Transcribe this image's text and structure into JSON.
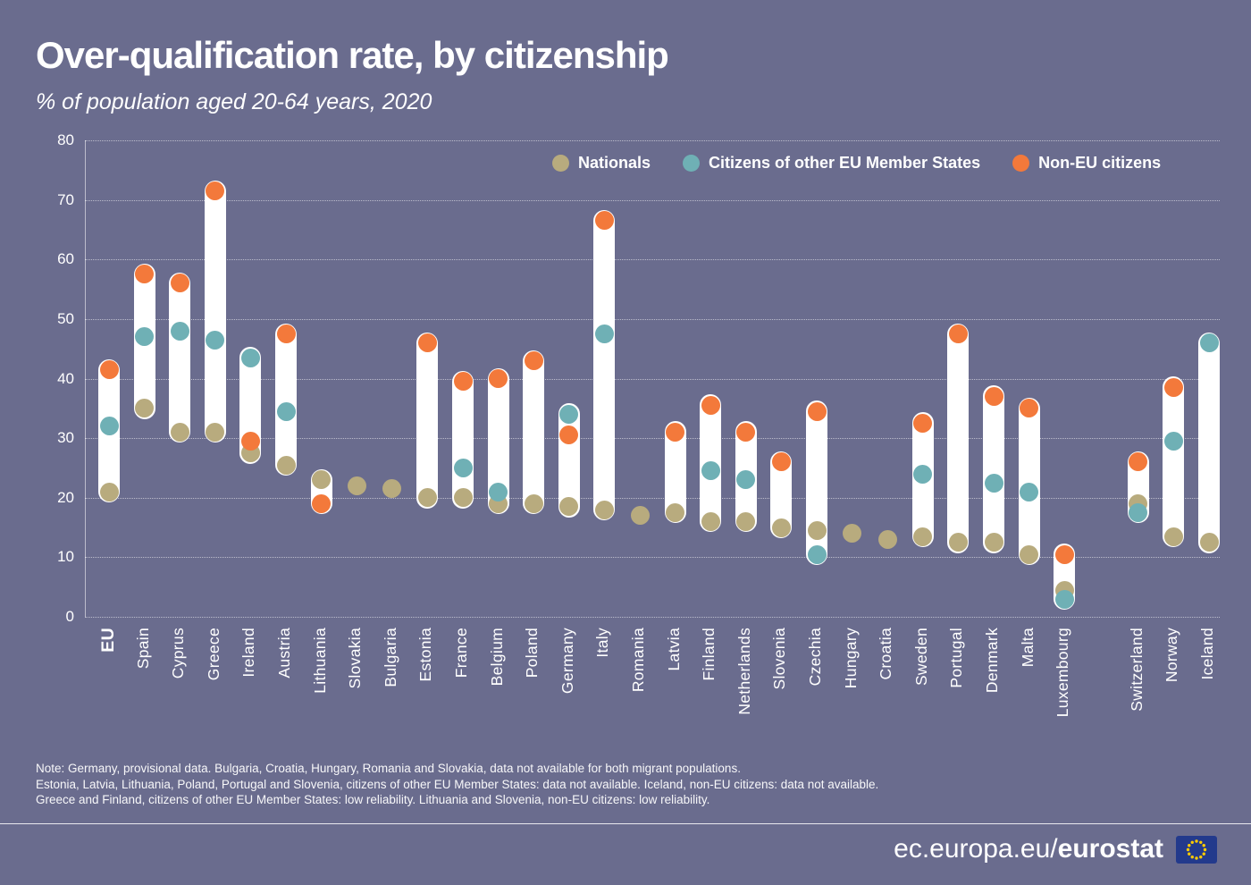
{
  "title": "Over-qualification rate, by citizenship",
  "subtitle": "% of population aged 20-64 years, 2020",
  "notes": [
    "Note: Germany, provisional data. Bulgaria, Croatia, Hungary, Romania and Slovakia, data not available for both migrant populations.",
    "Estonia, Latvia, Lithuania, Poland, Portugal and Slovenia, citizens of other EU Member States: data not available. Iceland, non-EU citizens: data not available.",
    "Greece and Finland, citizens of other EU Member States: low reliability. Lithuania and Slovenia, non-EU citizens: low reliability."
  ],
  "footer": {
    "url_prefix": "ec.europa.eu/",
    "url_bold": "eurostat"
  },
  "colors": {
    "background": "#6a6c8e",
    "bar": "#ffffff",
    "nationals": "#b8ab7e",
    "eu_citizens": "#6fb0b5",
    "non_eu": "#f3793b",
    "flag_blue": "#233a8c",
    "flag_stars": "#ffcc00"
  },
  "chart_data": {
    "type": "scatter",
    "title": "Over-qualification rate, by citizenship",
    "subtitle": "% of population aged 20-64 years, 2020",
    "ylim": [
      0,
      80
    ],
    "yticks": [
      0,
      10,
      20,
      30,
      40,
      50,
      60,
      70,
      80
    ],
    "grid": true,
    "legend_position": "top-right",
    "series": [
      {
        "key": "nationals",
        "name": "Nationals",
        "color": "#b8ab7e"
      },
      {
        "key": "eu_citizens",
        "name": "Citizens of other EU Member States",
        "color": "#6fb0b5"
      },
      {
        "key": "non_eu",
        "name": "Non-EU citizens",
        "color": "#f3793b"
      }
    ],
    "value_order": [
      "nationals",
      "eu_citizens",
      "non_eu"
    ],
    "countries": [
      {
        "name": "EU",
        "emphasis": true,
        "group": "eu",
        "values": [
          21,
          32,
          41.5
        ]
      },
      {
        "name": "Spain",
        "group": "eu",
        "values": [
          35,
          47,
          57.5
        ]
      },
      {
        "name": "Cyprus",
        "group": "eu",
        "values": [
          31,
          48,
          56
        ]
      },
      {
        "name": "Greece",
        "group": "eu",
        "values": [
          31,
          46.5,
          71.5
        ]
      },
      {
        "name": "Ireland",
        "group": "eu",
        "values": [
          27.5,
          43.5,
          29.5
        ]
      },
      {
        "name": "Austria",
        "group": "eu",
        "values": [
          25.5,
          34.5,
          47.5
        ]
      },
      {
        "name": "Lithuania",
        "group": "eu",
        "values": [
          23,
          null,
          19
        ]
      },
      {
        "name": "Slovakia",
        "group": "eu",
        "values": [
          22,
          null,
          null
        ]
      },
      {
        "name": "Bulgaria",
        "group": "eu",
        "values": [
          21.5,
          null,
          null
        ]
      },
      {
        "name": "Estonia",
        "group": "eu",
        "values": [
          20,
          null,
          46
        ]
      },
      {
        "name": "France",
        "group": "eu",
        "values": [
          20,
          25,
          39.5
        ]
      },
      {
        "name": "Belgium",
        "group": "eu",
        "values": [
          19,
          21,
          40
        ]
      },
      {
        "name": "Poland",
        "group": "eu",
        "values": [
          19,
          null,
          43
        ]
      },
      {
        "name": "Germany",
        "group": "eu",
        "values": [
          18.5,
          34,
          30.5
        ]
      },
      {
        "name": "Italy",
        "group": "eu",
        "values": [
          18,
          47.5,
          66.5
        ]
      },
      {
        "name": "Romania",
        "group": "eu",
        "values": [
          17,
          null,
          null
        ]
      },
      {
        "name": "Latvia",
        "group": "eu",
        "values": [
          17.5,
          null,
          31
        ]
      },
      {
        "name": "Finland",
        "group": "eu",
        "values": [
          16,
          24.5,
          35.5
        ]
      },
      {
        "name": "Netherlands",
        "group": "eu",
        "values": [
          16,
          23,
          31
        ]
      },
      {
        "name": "Slovenia",
        "group": "eu",
        "values": [
          15,
          null,
          26
        ]
      },
      {
        "name": "Czechia",
        "group": "eu",
        "values": [
          14.5,
          10.5,
          34.5
        ]
      },
      {
        "name": "Hungary",
        "group": "eu",
        "values": [
          14,
          null,
          null
        ]
      },
      {
        "name": "Croatia",
        "group": "eu",
        "values": [
          13,
          null,
          null
        ]
      },
      {
        "name": "Sweden",
        "group": "eu",
        "values": [
          13.5,
          24,
          32.5
        ]
      },
      {
        "name": "Portugal",
        "group": "eu",
        "values": [
          12.5,
          null,
          47.5
        ]
      },
      {
        "name": "Denmark",
        "group": "eu",
        "values": [
          12.5,
          22.5,
          37
        ]
      },
      {
        "name": "Malta",
        "group": "eu",
        "values": [
          10.5,
          21,
          35
        ]
      },
      {
        "name": "Luxembourg",
        "group": "eu",
        "values": [
          4.5,
          3,
          10.5
        ]
      },
      {
        "name": "Switzerland",
        "group": "efta",
        "values": [
          19,
          17.5,
          26
        ]
      },
      {
        "name": "Norway",
        "group": "efta",
        "values": [
          13.5,
          29.5,
          38.5
        ]
      },
      {
        "name": "Iceland",
        "group": "efta",
        "values": [
          12.5,
          46,
          null
        ]
      }
    ]
  }
}
